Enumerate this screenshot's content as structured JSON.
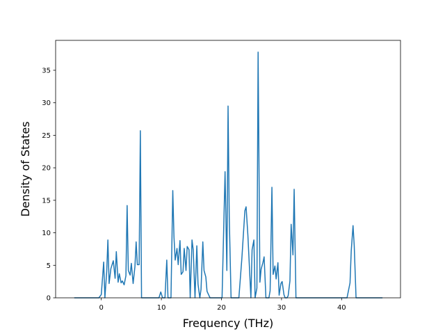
{
  "chart_data": {
    "type": "line",
    "title": "",
    "xlabel": "Frequency (THz)",
    "ylabel": "Density of States",
    "xlim": [
      -7.6,
      49.8
    ],
    "ylim": [
      0,
      39.6
    ],
    "xticks": [
      0,
      10,
      20,
      30,
      40
    ],
    "yticks": [
      0,
      5,
      10,
      15,
      20,
      25,
      30,
      35
    ],
    "grid": false,
    "legend": "none",
    "line_color": "#1f77b4",
    "series": [
      {
        "x": [
          -4.5,
          -0.4,
          0.0,
          0.4,
          0.6,
          0.9,
          1.1,
          1.3,
          1.6,
          2.0,
          2.3,
          2.5,
          2.8,
          3.0,
          3.3,
          3.5,
          3.8,
          4.1,
          4.3,
          4.5,
          4.8,
          5.0,
          5.3,
          5.6,
          5.8,
          6.0,
          6.3,
          6.5,
          6.7,
          9.6,
          9.9,
          10.2,
          10.6,
          10.9,
          11.1,
          11.3,
          11.6,
          11.9,
          12.1,
          12.3,
          12.6,
          12.8,
          13.1,
          13.3,
          13.6,
          13.8,
          14.1,
          14.3,
          14.6,
          14.8,
          15.1,
          15.3,
          15.6,
          15.9,
          16.1,
          16.4,
          16.6,
          16.9,
          17.1,
          17.4,
          17.6,
          17.9,
          18.1,
          20.1,
          20.6,
          20.9,
          21.1,
          21.3,
          21.6,
          21.9,
          22.9,
          23.4,
          23.9,
          24.1,
          24.4,
          24.9,
          25.1,
          25.4,
          25.6,
          25.9,
          26.1,
          26.4,
          26.6,
          26.9,
          27.1,
          27.4,
          27.6,
          27.9,
          28.1,
          28.4,
          28.6,
          28.9,
          29.1,
          29.4,
          29.6,
          29.9,
          30.1,
          30.4,
          30.6,
          30.9,
          31.1,
          31.4,
          31.6,
          31.9,
          32.1,
          32.4,
          32.6,
          32.9,
          33.1,
          33.4,
          40.9,
          41.4,
          41.6,
          41.9,
          42.1,
          42.4,
          42.6,
          46.8
        ],
        "values": [
          0,
          0,
          0.5,
          5.5,
          0,
          4.0,
          8.9,
          2.2,
          4.5,
          5.7,
          3.0,
          7.1,
          2.4,
          3.7,
          2.3,
          2.6,
          2.0,
          3.4,
          14.2,
          4.2,
          3.5,
          5.3,
          2.2,
          4.8,
          8.6,
          5.1,
          5.1,
          25.7,
          0,
          0,
          0.9,
          0,
          0,
          5.8,
          0,
          0,
          0,
          16.5,
          9.3,
          5.8,
          7.6,
          5.1,
          8.8,
          3.6,
          4.0,
          7.6,
          4.2,
          7.9,
          7.4,
          0,
          8.9,
          7.4,
          0,
          8.0,
          2.1,
          0,
          1.3,
          8.6,
          4.2,
          3.2,
          1.0,
          0.4,
          0,
          0,
          19.4,
          4.2,
          29.5,
          12.4,
          0,
          0,
          0,
          6.1,
          13.4,
          14.0,
          9.6,
          0,
          7.4,
          8.9,
          0,
          1.5,
          37.8,
          2.4,
          4.4,
          5.4,
          6.3,
          0,
          0,
          0,
          1.1,
          17.0,
          3.6,
          4.9,
          2.9,
          5.4,
          0.4,
          2.2,
          2.5,
          0.5,
          0,
          0,
          0.3,
          2.6,
          11.3,
          6.6,
          16.7,
          0,
          0,
          0,
          0,
          0,
          0,
          2.3,
          7.2,
          11.1,
          8.0,
          0,
          0,
          0
        ]
      }
    ]
  }
}
